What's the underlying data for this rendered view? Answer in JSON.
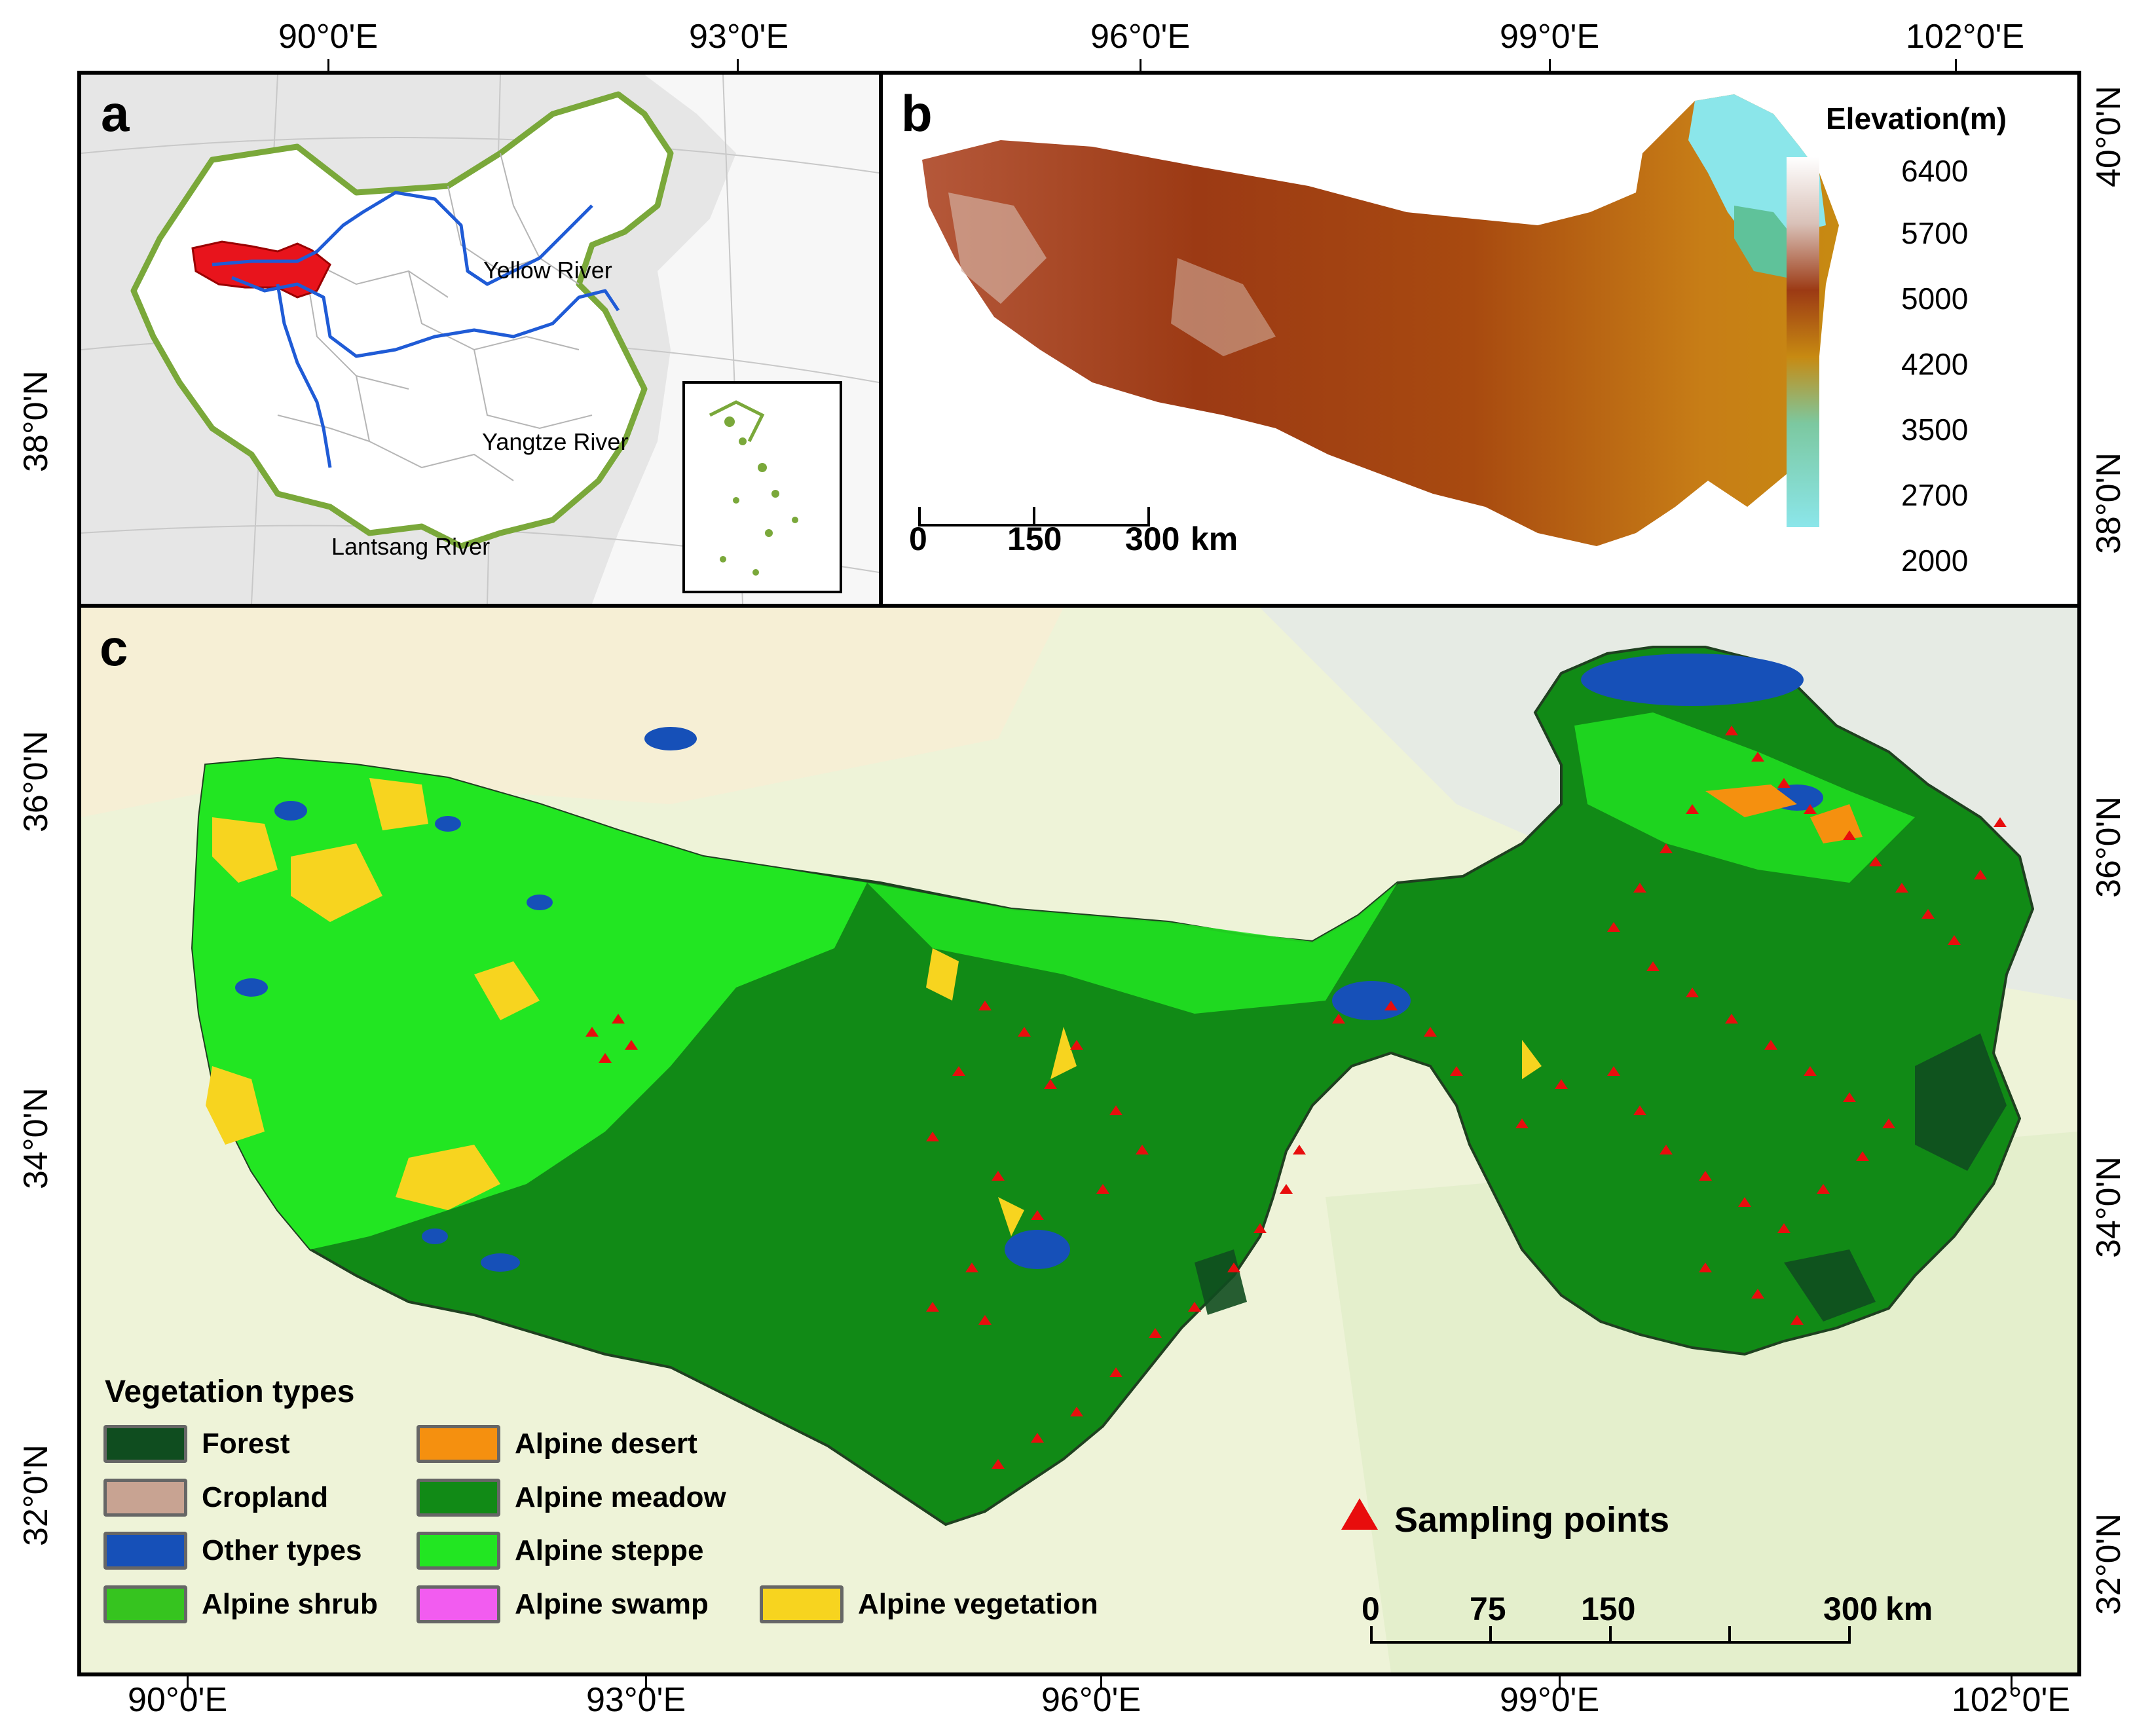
{
  "top_lon_labels": [
    "90°0'E",
    "93°0'E",
    "96°0'E",
    "99°0'E",
    "102°0'E"
  ],
  "bottom_lon_labels": [
    "90°0'E",
    "93°0'E",
    "96°0'E",
    "99°0'E",
    "102°0'E"
  ],
  "left_lat_labels": [
    "38°0'N",
    "36°0'N",
    "34°0'N",
    "32°0'N"
  ],
  "right_lat_labels": [
    "40°0'N",
    "38°0'N",
    "36°0'N",
    "34°0'N",
    "32°0'N"
  ],
  "panel_a": {
    "label": "a",
    "rivers": [
      "Yellow River",
      "Yangtze River",
      "Lantsang River"
    ],
    "colors": {
      "study_area": "#e8141c",
      "river": "#1f5bd6",
      "border": "#7aa83a"
    }
  },
  "panel_b": {
    "label": "b",
    "legend_title": "Elevation(m)",
    "elevation_ticks": [
      "6400",
      "5700",
      "5000",
      "4200",
      "3500",
      "2700",
      "2000"
    ],
    "scale_labels": [
      "0",
      "150",
      "300"
    ],
    "scale_unit": "km"
  },
  "panel_c": {
    "label": "c",
    "legend_title": "Vegetation types",
    "vegetation_types": [
      {
        "name": "Forest",
        "color": "#0f4d1f"
      },
      {
        "name": "Cropland",
        "color": "#c8a392"
      },
      {
        "name": "Other types",
        "color": "#1650b8"
      },
      {
        "name": "Alpine shrub",
        "color": "#36c41f"
      },
      {
        "name": "Alpine desert",
        "color": "#f5900f"
      },
      {
        "name": "Alpine meadow",
        "color": "#118a16"
      },
      {
        "name": "Alpine steppe",
        "color": "#22e622"
      },
      {
        "name": "Alpine swamp",
        "color": "#f25cf0"
      },
      {
        "name": "Alpine vegetation",
        "color": "#f7d41f"
      }
    ],
    "sampling_label": "Sampling points",
    "sampling_color": "#e80d0d",
    "scale_labels": [
      "0",
      "75",
      "150",
      "300"
    ],
    "scale_unit": "km"
  }
}
